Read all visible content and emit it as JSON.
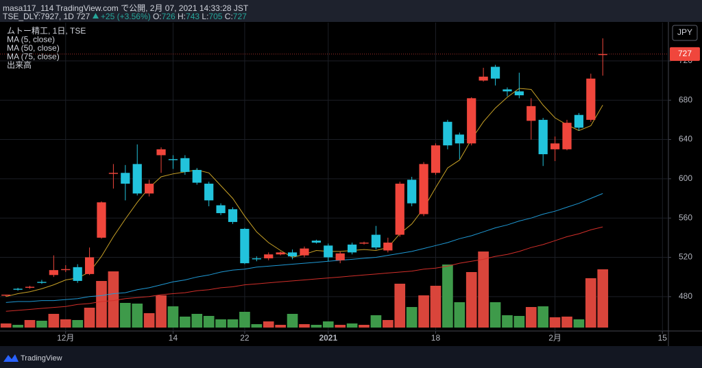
{
  "header": {
    "publisher": "masa117_114 TradingView.com で公開, 2月 07, 2021 14:33:28 JST",
    "symbol": "TSE_DLY:7927, 1D",
    "change": "+25 (+3.56%)",
    "ohlc_labels": [
      "O:",
      "H:",
      "L:",
      "C:"
    ]
  },
  "footer": {
    "logo_text": "TradingView"
  },
  "chart_data": {
    "type": "candlestick",
    "title": "ムトー精工, 1日, TSE",
    "currency": "JPY",
    "volume_label": "出来高",
    "up_color": "#f0463c",
    "down_color": "#22c3dc",
    "volume_up_color": "#d9453b",
    "volume_down_color": "#3e9a4a",
    "open": [
      481,
      488,
      489,
      495,
      502,
      507,
      510,
      503,
      540,
      605,
      606,
      615,
      585,
      624,
      620,
      621,
      609,
      595,
      573,
      569,
      549,
      519,
      519,
      523,
      525,
      522,
      537,
      532,
      517,
      533,
      534,
      543,
      527,
      543,
      599,
      564,
      606,
      658,
      645,
      636,
      700,
      714,
      691,
      689,
      659,
      660,
      630,
      630,
      665,
      660,
      726
    ],
    "high": [
      482,
      489,
      491,
      497,
      522,
      512,
      513,
      530,
      577,
      615,
      614,
      635,
      599,
      632,
      624,
      624,
      611,
      597,
      575,
      571,
      550,
      521,
      525,
      526,
      528,
      531,
      538,
      534,
      526,
      535,
      536,
      552,
      540,
      597,
      602,
      617,
      636,
      660,
      647,
      683,
      713,
      716,
      693,
      708,
      682,
      662,
      643,
      660,
      667,
      707,
      743
    ],
    "low": [
      480,
      486,
      488,
      493,
      500,
      505,
      494,
      502,
      539,
      590,
      578,
      583,
      582,
      606,
      610,
      604,
      594,
      572,
      563,
      554,
      513,
      516,
      517,
      522,
      518,
      520,
      534,
      516,
      514,
      523,
      533,
      528,
      525,
      541,
      572,
      562,
      604,
      630,
      620,
      634,
      699,
      695,
      684,
      682,
      640,
      613,
      618,
      629,
      649,
      658,
      705
    ],
    "close": [
      482,
      487,
      490,
      494,
      507,
      508,
      496,
      520,
      576,
      606,
      595,
      585,
      595,
      630,
      619,
      607,
      596,
      578,
      565,
      556,
      514,
      518,
      523,
      525,
      521,
      529,
      535,
      520,
      524,
      525,
      535,
      530,
      535,
      595,
      575,
      615,
      634,
      634,
      636,
      682,
      704,
      702,
      689,
      685,
      674,
      625,
      636,
      657,
      652,
      702,
      727
    ],
    "volume": [
      6,
      4,
      11,
      10,
      20,
      12,
      11,
      29,
      68,
      82,
      36,
      35,
      21,
      47,
      31,
      16,
      20,
      17,
      12,
      12,
      23,
      5,
      9,
      4,
      20,
      5,
      4,
      9,
      4,
      6,
      4,
      18,
      11,
      64,
      30,
      47,
      61,
      92,
      37,
      81,
      111,
      37,
      18,
      17,
      30,
      31,
      15,
      16,
      12,
      72,
      85
    ],
    "series": [
      {
        "name": "MA (5, close)",
        "color": "#c9a227",
        "values": [
          480,
          483,
          485,
          488,
          492,
          497,
          499,
          505,
          521,
          541,
          559,
          576,
          591,
          602,
          605,
          607,
          609,
          606,
          593,
          580,
          562,
          546,
          535,
          527,
          520,
          523,
          527,
          526,
          526,
          527,
          528,
          527,
          530,
          544,
          554,
          570,
          591,
          611,
          619,
          640,
          658,
          672,
          683,
          692,
          691,
          675,
          662,
          655,
          649,
          654,
          675
        ]
      },
      {
        "name": "MA (50, close)",
        "color": "#1f9ad6",
        "values": [
          474,
          475,
          475,
          476,
          476,
          477,
          478,
          480,
          481,
          483,
          484,
          487,
          489,
          492,
          495,
          497,
          500,
          502,
          505,
          507,
          508,
          510,
          511,
          512,
          513,
          514,
          515,
          516,
          517,
          518,
          519,
          520,
          522,
          524,
          526,
          529,
          532,
          535,
          539,
          542,
          546,
          550,
          553,
          557,
          560,
          564,
          567,
          571,
          575,
          580,
          585
        ]
      },
      {
        "name": "MA (75, close)",
        "color": "#d22f2a",
        "values": [
          465,
          466,
          467,
          468,
          469,
          470,
          472,
          473,
          475,
          476,
          478,
          479,
          480,
          482,
          483,
          484,
          486,
          487,
          489,
          490,
          492,
          493,
          494,
          495,
          496,
          497,
          498,
          499,
          500,
          501,
          502,
          503,
          504,
          505,
          506,
          508,
          509,
          511,
          514,
          516,
          518,
          521,
          523,
          526,
          530,
          533,
          537,
          541,
          544,
          548,
          551
        ]
      }
    ],
    "xlim": [
      -0.5,
      55.5
    ],
    "xticks": [
      {
        "value": 5,
        "label": "12月"
      },
      {
        "value": 14,
        "label": "14"
      },
      {
        "value": 20,
        "label": "22"
      },
      {
        "value": 27,
        "label": "2021"
      },
      {
        "value": 36,
        "label": "18"
      },
      {
        "value": 46,
        "label": "2月"
      },
      {
        "value": 55,
        "label": "15"
      }
    ],
    "ylim": [
      445,
      759
    ],
    "yticks": [
      480,
      520,
      560,
      600,
      640,
      680,
      720
    ],
    "grid": true
  }
}
